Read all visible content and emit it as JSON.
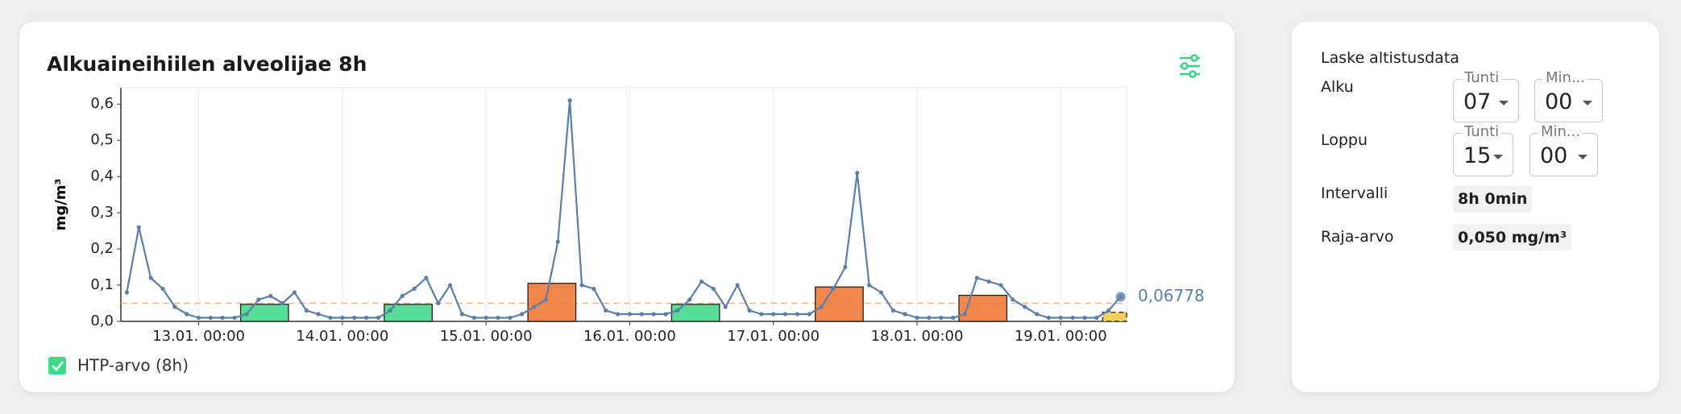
{
  "chart_data": {
    "type": "line",
    "title": "Alkuaineihiilen alveolijae 8h",
    "y_label": "mg/m³",
    "x": [
      "12.01. 12:00",
      "12.01. 14:00",
      "12.01. 16:00",
      "12.01. 18:00",
      "12.01. 20:00",
      "12.01. 22:00",
      "13.01. 00:00",
      "13.01. 02:00",
      "13.01. 04:00",
      "13.01. 06:00",
      "13.01. 08:00",
      "13.01. 10:00",
      "13.01. 12:00",
      "13.01. 14:00",
      "13.01. 16:00",
      "13.01. 18:00",
      "13.01. 20:00",
      "13.01. 22:00",
      "14.01. 00:00",
      "14.01. 02:00",
      "14.01. 04:00",
      "14.01. 06:00",
      "14.01. 08:00",
      "14.01. 10:00",
      "14.01. 12:00",
      "14.01. 14:00",
      "14.01. 16:00",
      "14.01. 18:00",
      "14.01. 20:00",
      "14.01. 22:00",
      "15.01. 00:00",
      "15.01. 02:00",
      "15.01. 04:00",
      "15.01. 06:00",
      "15.01. 08:00",
      "15.01. 10:00",
      "15.01. 12:00",
      "15.01. 14:00",
      "15.01. 16:00",
      "15.01. 18:00",
      "15.01. 20:00",
      "15.01. 22:00",
      "16.01. 00:00",
      "16.01. 02:00",
      "16.01. 04:00",
      "16.01. 06:00",
      "16.01. 08:00",
      "16.01. 10:00",
      "16.01. 12:00",
      "16.01. 14:00",
      "16.01. 16:00",
      "16.01. 18:00",
      "16.01. 20:00",
      "16.01. 22:00",
      "17.01. 00:00",
      "17.01. 02:00",
      "17.01. 04:00",
      "17.01. 06:00",
      "17.01. 08:00",
      "17.01. 10:00",
      "17.01. 12:00",
      "17.01. 14:00",
      "17.01. 16:00",
      "17.01. 18:00",
      "17.01. 20:00",
      "17.01. 22:00",
      "18.01. 00:00",
      "18.01. 02:00",
      "18.01. 04:00",
      "18.01. 06:00",
      "18.01. 08:00",
      "18.01. 10:00",
      "18.01. 12:00",
      "18.01. 14:00",
      "18.01. 16:00",
      "18.01. 18:00",
      "18.01. 20:00",
      "18.01. 22:00",
      "19.01. 00:00",
      "19.01. 02:00",
      "19.01. 04:00",
      "19.01. 06:00",
      "19.01. 08:00",
      "19.01. 10:00"
    ],
    "series": [
      {
        "color": "#5b7fab",
        "values": [
          0.08,
          0.26,
          0.12,
          0.09,
          0.04,
          0.02,
          0.01,
          0.01,
          0.01,
          0.01,
          0.02,
          0.06,
          0.07,
          0.05,
          0.08,
          0.03,
          0.02,
          0.01,
          0.01,
          0.01,
          0.01,
          0.01,
          0.03,
          0.07,
          0.09,
          0.12,
          0.05,
          0.1,
          0.02,
          0.01,
          0.01,
          0.01,
          0.01,
          0.02,
          0.04,
          0.06,
          0.22,
          0.61,
          0.1,
          0.09,
          0.03,
          0.02,
          0.02,
          0.02,
          0.02,
          0.02,
          0.03,
          0.06,
          0.11,
          0.09,
          0.04,
          0.1,
          0.03,
          0.02,
          0.02,
          0.02,
          0.02,
          0.02,
          0.04,
          0.09,
          0.15,
          0.41,
          0.1,
          0.08,
          0.03,
          0.02,
          0.01,
          0.01,
          0.01,
          0.01,
          0.02,
          0.12,
          0.11,
          0.1,
          0.06,
          0.04,
          0.02,
          0.01,
          0.01,
          0.01,
          0.01,
          0.01,
          0.03,
          0.06778
        ]
      }
    ],
    "end_label": {
      "value": 0.06778,
      "label": "0,06778"
    },
    "xlim": [
      "12.01. 11:00",
      "19.01. 11:00"
    ],
    "xticks": [
      "13.01. 00:00",
      "14.01. 00:00",
      "15.01. 00:00",
      "16.01. 00:00",
      "17.01. 00:00",
      "18.01. 00:00",
      "19.01. 00:00"
    ],
    "ylim": [
      0,
      0.645
    ],
    "yticks": [
      {
        "value": 0,
        "label": "0,0"
      },
      {
        "value": 0.1,
        "label": "0,1"
      },
      {
        "value": 0.2,
        "label": "0,2"
      },
      {
        "value": 0.3,
        "label": "0,3"
      },
      {
        "value": 0.4,
        "label": "0,4"
      },
      {
        "value": 0.5,
        "label": "0,5"
      },
      {
        "value": 0.6,
        "label": "0,6"
      }
    ],
    "grid": true,
    "limit": {
      "value": 0.05,
      "color": "#f2b48c"
    },
    "windows": {
      "name": "HTP-arvo (8h)",
      "legend_color": "#3ddc84",
      "items": [
        {
          "start": "13.01. 07:00",
          "end": "13.01. 15:00",
          "value": 0.047,
          "color": "#45d98a"
        },
        {
          "start": "14.01. 07:00",
          "end": "14.01. 15:00",
          "value": 0.047,
          "color": "#45d98a"
        },
        {
          "start": "15.01. 07:00",
          "end": "15.01. 15:00",
          "value": 0.105,
          "color": "#f07a3a"
        },
        {
          "start": "16.01. 07:00",
          "end": "16.01. 15:00",
          "value": 0.047,
          "color": "#45d98a"
        },
        {
          "start": "17.01. 07:00",
          "end": "17.01. 15:00",
          "value": 0.095,
          "color": "#f07a3a"
        },
        {
          "start": "18.01. 07:00",
          "end": "18.01. 15:00",
          "value": 0.072,
          "color": "#f07a3a"
        },
        {
          "start": "19.01. 07:00",
          "end": "19.01. 11:00",
          "value": 0.025,
          "color": "#f7c948",
          "dashed": true
        }
      ]
    }
  },
  "panel": {
    "title": "Laske altistusdata",
    "rows": [
      {
        "label": "Alku",
        "hour_caption": "Tunti",
        "hour": "07",
        "minute_caption": "Min...",
        "minute": "00"
      },
      {
        "label": "Loppu",
        "hour_caption": "Tunti",
        "hour": "15",
        "minute_caption": "Min...",
        "minute": "00"
      }
    ],
    "interval": {
      "label": "Intervalli",
      "value": "8h 0min"
    },
    "limit": {
      "label": "Raja-arvo",
      "value": "0,050 mg/m³"
    }
  }
}
